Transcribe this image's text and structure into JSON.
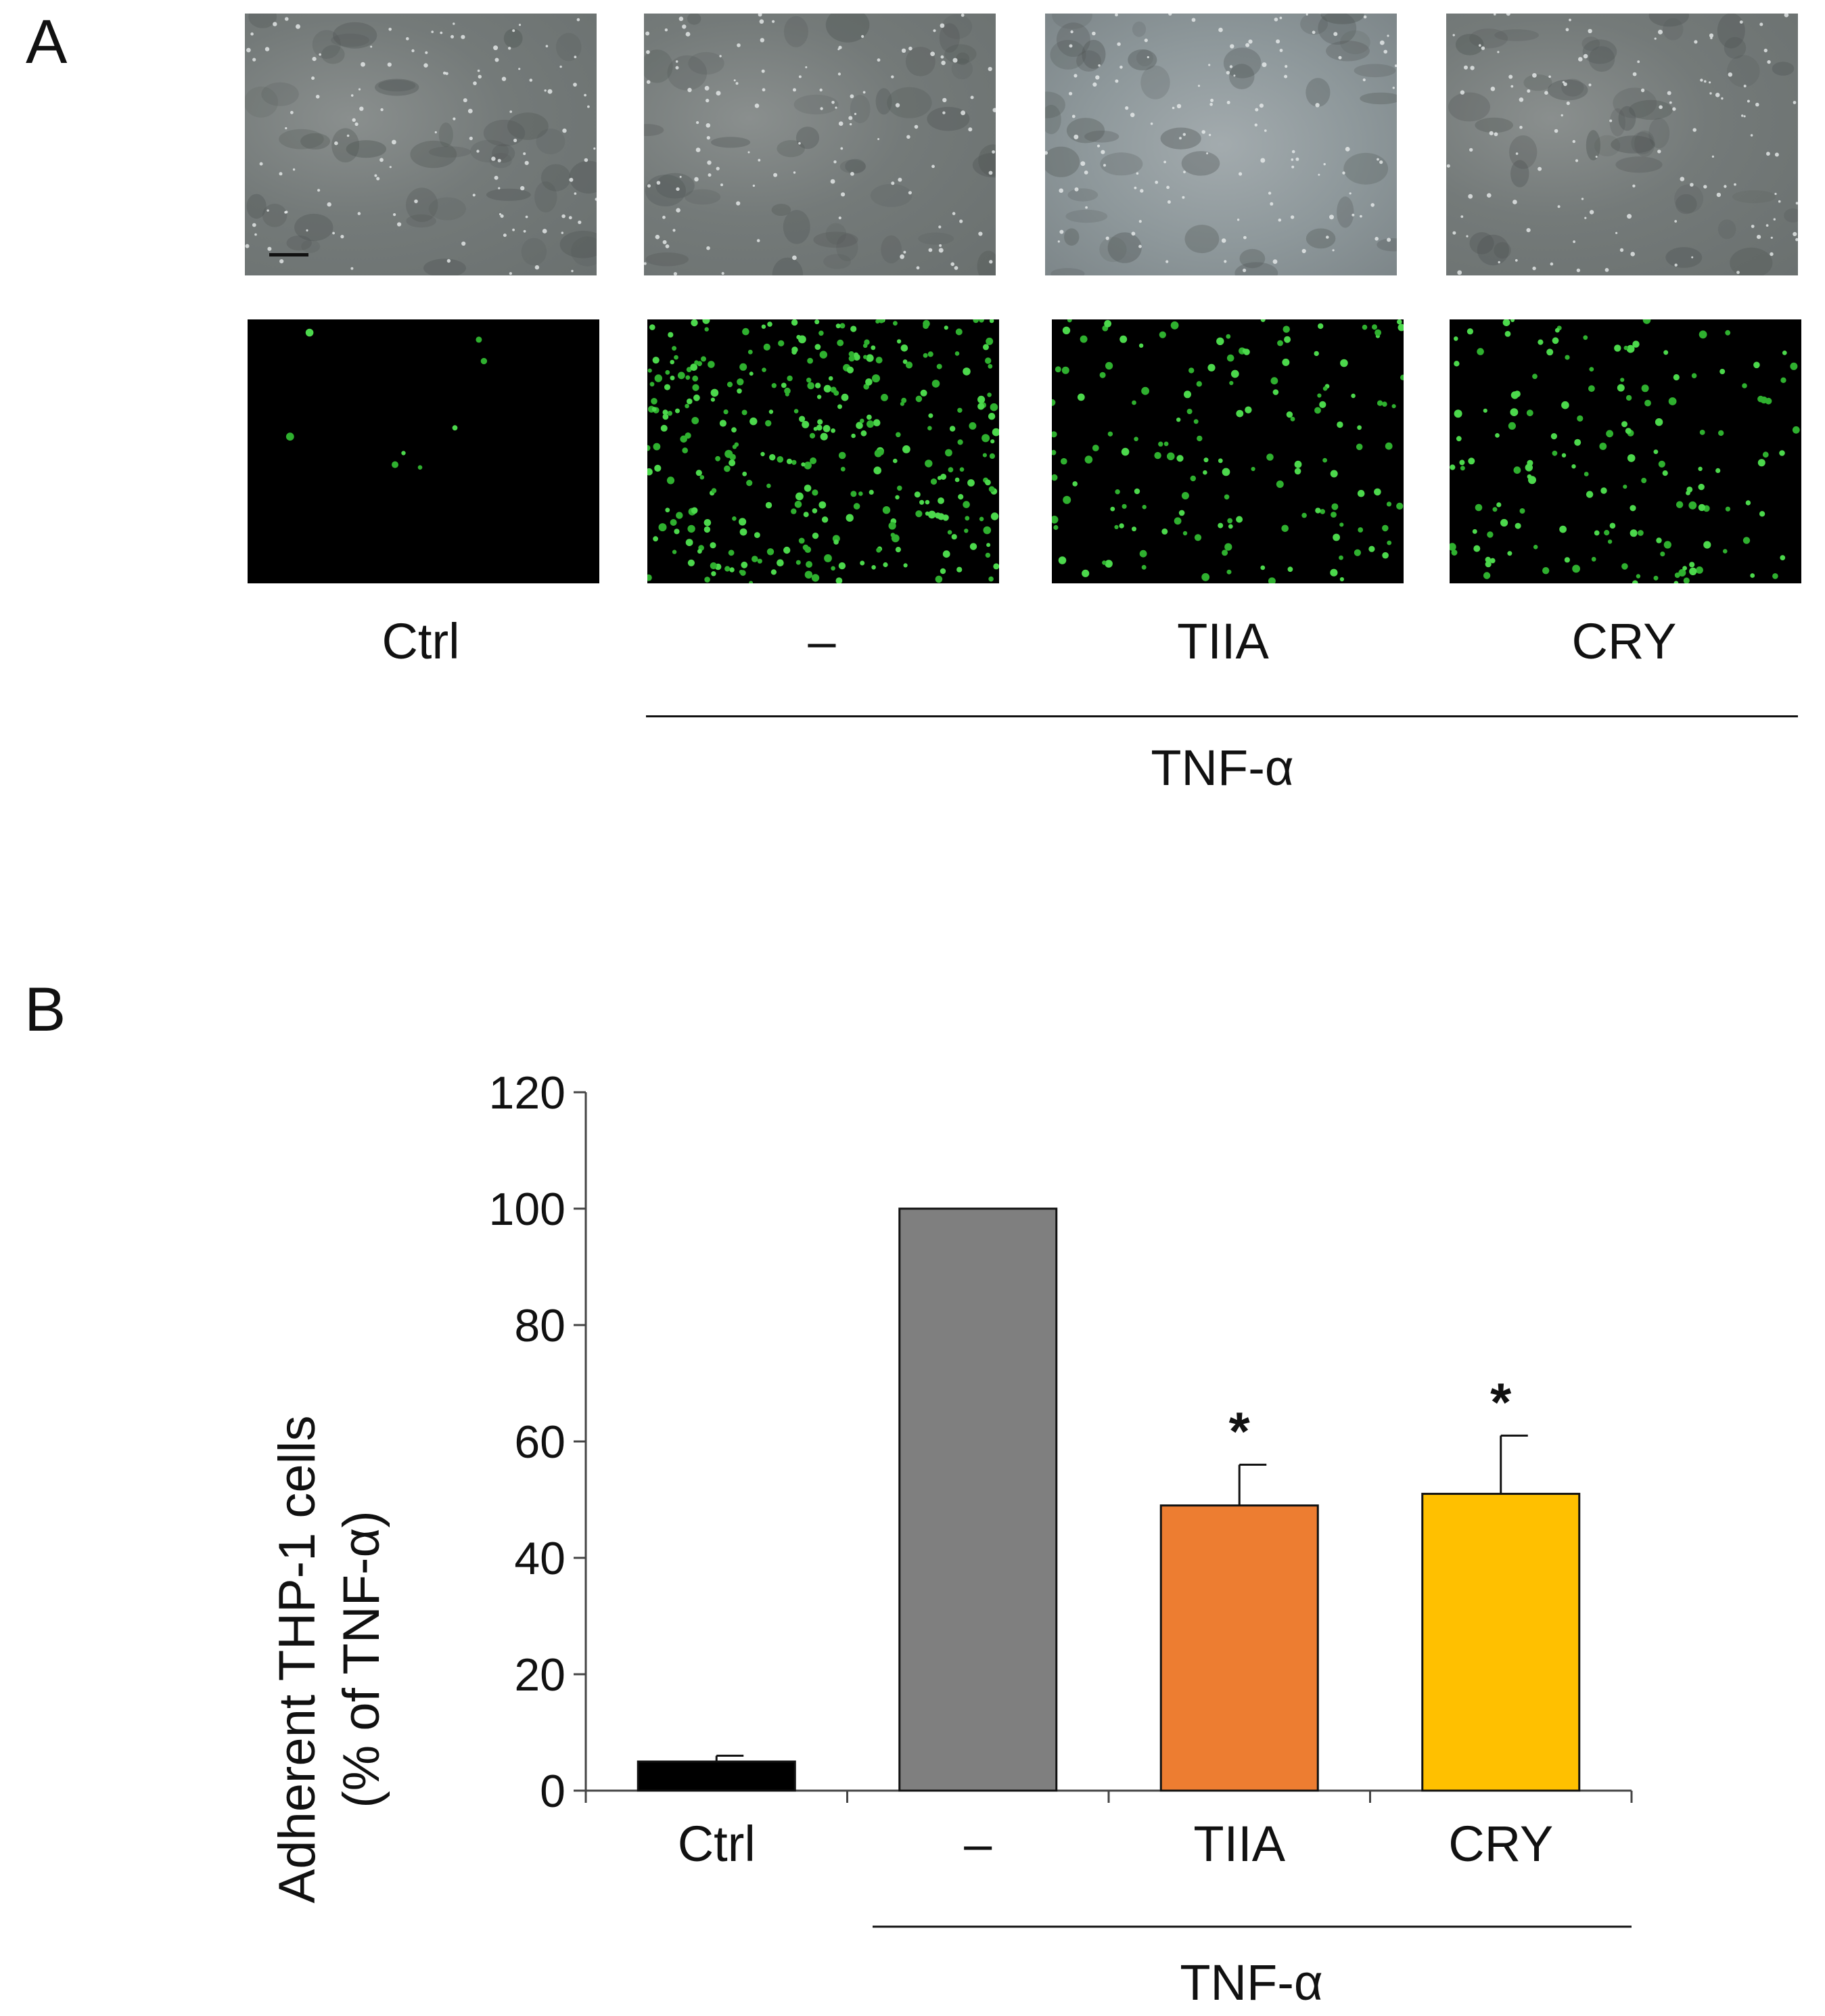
{
  "panel_a": {
    "letter": "A",
    "labels": [
      "Ctrl",
      "–",
      "TIIA",
      "CRY"
    ],
    "group_label": "TNF-α"
  },
  "panel_b": {
    "letter": "B"
  },
  "chart_data": {
    "type": "bar",
    "categories": [
      "Ctrl",
      "–",
      "TIIA",
      "CRY"
    ],
    "values": [
      5,
      100,
      49,
      51
    ],
    "errors": [
      1,
      0,
      7,
      10
    ],
    "significance": [
      "",
      "",
      "*",
      "*"
    ],
    "colors": [
      "#000000",
      "#7f7f7f",
      "#ed7d31",
      "#ffc000"
    ],
    "ylabel_line1": "Adherent THP-1 cells",
    "ylabel_line2": "(% of TNF-α)",
    "ylim": [
      0,
      120
    ],
    "yticks": [
      0,
      20,
      40,
      60,
      80,
      100,
      120
    ],
    "group_label": "TNF-α",
    "grid": false
  }
}
